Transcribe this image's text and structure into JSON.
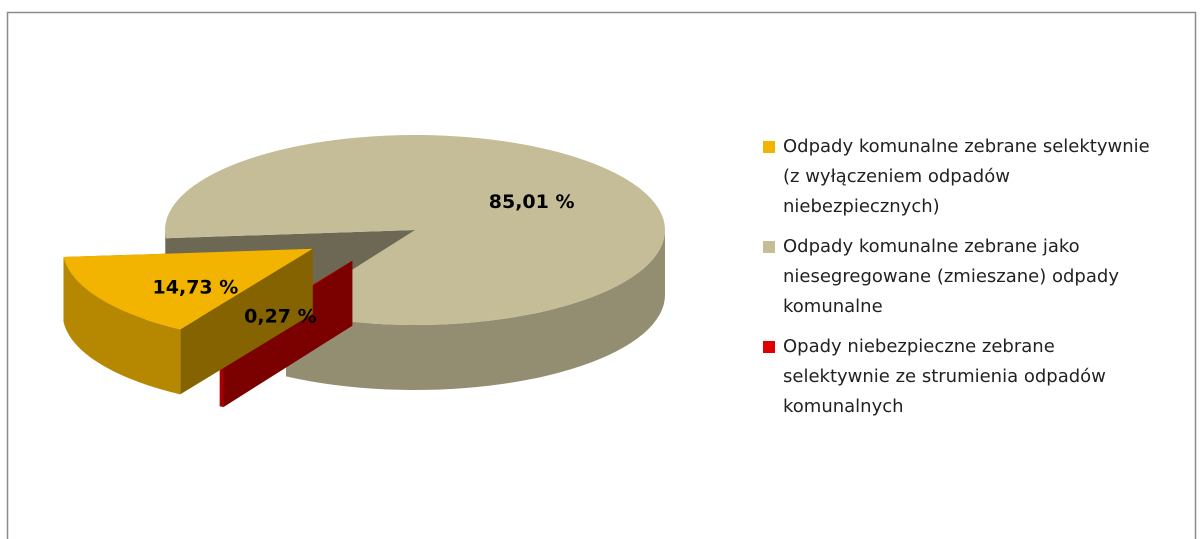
{
  "chart_data": {
    "type": "pie",
    "categories": [
      "Odpady komunalne zebrane selektywnie (z wyłączeniem odpadów niebezpiecznych)",
      "Odpady komunalne zebrane jako niesegregowane (zmieszane) odpady komunalne",
      "Opady niebezpieczne zebrane selektywnie ze strumienia odpadów komunalnych"
    ],
    "values": [
      14.73,
      85.01,
      0.27
    ],
    "value_labels": [
      "14,73 %",
      "85,01 %",
      "0,27 %"
    ],
    "colors": [
      "#f2b400",
      "#c4bd97",
      "#e00000"
    ],
    "legend": "right"
  }
}
